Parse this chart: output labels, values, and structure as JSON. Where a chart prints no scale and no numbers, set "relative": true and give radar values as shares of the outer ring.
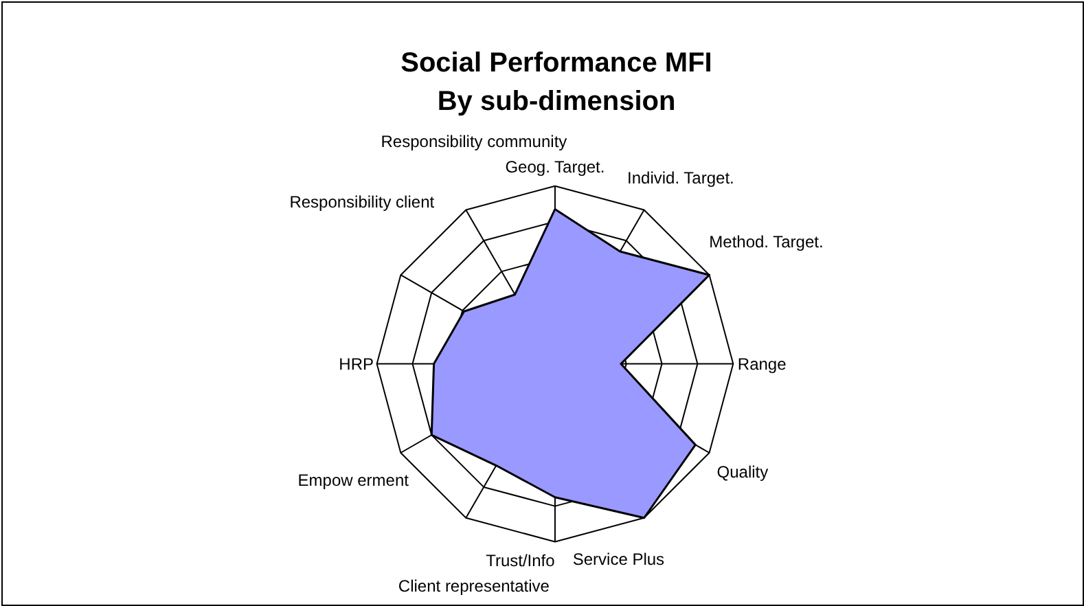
{
  "chart_data": {
    "type": "radar",
    "title": "Social Performance MFI\nBy sub-dimension",
    "relative": true,
    "grid": true,
    "categories": [
      "Geog. Target.",
      "Individ. Target.",
      "Method. Target.",
      "Range",
      "Quality",
      "Service Plus",
      "Trust/Info",
      "Client representative",
      "Empow erment",
      "HRP",
      "Responsibility client",
      "Responsibility community"
    ],
    "series": [
      {
        "color": "#9999ff",
        "values": [
          0.87,
          0.73,
          1.0,
          0.37,
          0.91,
          1.0,
          0.75,
          0.66,
          0.8,
          0.68,
          0.59,
          0.45
        ]
      }
    ]
  }
}
